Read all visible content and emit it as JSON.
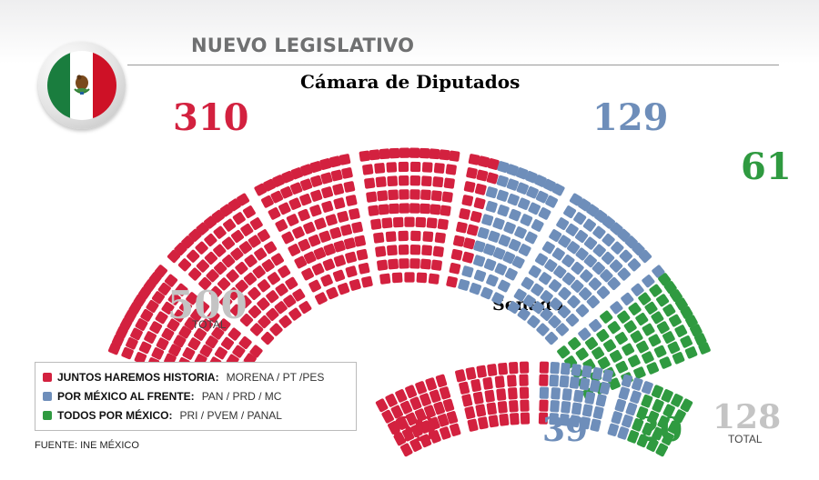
{
  "header": {
    "title": "NUEVO LEGISLATIVO"
  },
  "colors": {
    "red": "#d3213f",
    "blue": "#6e8eba",
    "green": "#2f9a40"
  },
  "legend": [
    {
      "name": "JUNTOS HAREMOS HISTORIA:",
      "parties": "MORENA / PT /PES",
      "color": "#d3213f"
    },
    {
      "name": "POR MÉXICO AL FRENTE:",
      "parties": "PAN / PRD / MC",
      "color": "#6e8eba"
    },
    {
      "name": "TODOS POR MÉXICO:",
      "parties": "PRI / PVEM / PANAL",
      "color": "#2f9a40"
    }
  ],
  "source": "FUENTE: INE MÉXICO",
  "chart_data": [
    {
      "type": "parliament",
      "title": "Cámara de Diputados",
      "categories": [
        "JUNTOS HAREMOS HISTORIA",
        "POR MÉXICO AL FRENTE",
        "TODOS POR MÉXICO"
      ],
      "values": [
        310,
        129,
        61
      ],
      "value_labels": [
        "310",
        "129",
        "61"
      ],
      "total": 500,
      "total_label": "500",
      "total_caption": "TOTAL",
      "colors": [
        "#d3213f",
        "#6e8eba",
        "#2f9a40"
      ]
    },
    {
      "type": "parliament",
      "title": "Senado",
      "categories": [
        "JUNTOS HAREMOS HISTORIA",
        "POR MÉXICO AL FRENTE",
        "TODOS POR MÉXICO"
      ],
      "values": [
        69,
        39,
        20
      ],
      "value_labels": [
        "69",
        "39",
        "20"
      ],
      "total": 128,
      "total_label": "128",
      "total_caption": "TOTAL",
      "colors": [
        "#d3213f",
        "#6e8eba",
        "#2f9a40"
      ]
    }
  ]
}
